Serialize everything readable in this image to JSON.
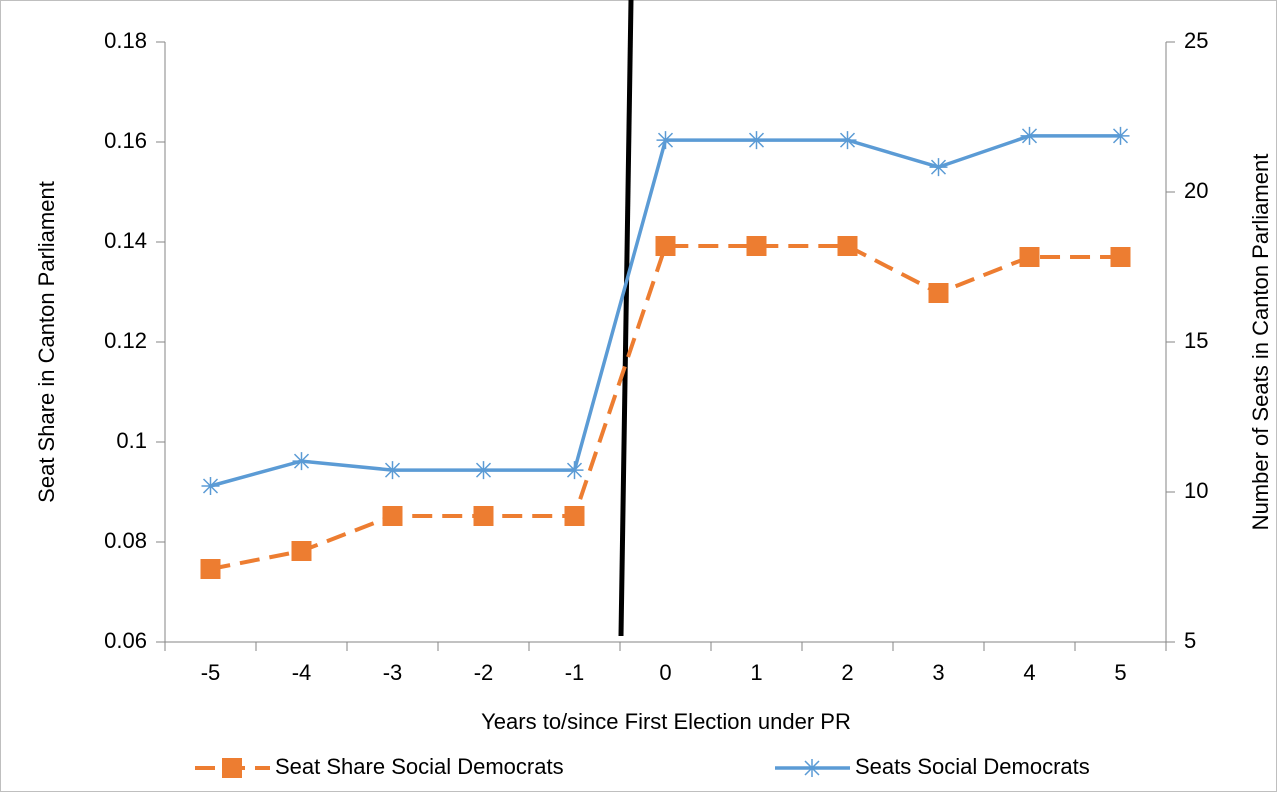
{
  "chart_data": {
    "type": "line",
    "x_label": "Years to/since First Election under PR",
    "y_label": "Seat Share in Canton Parliament",
    "y2_label": "Number of Seats in Canton Parliament",
    "categories": [
      "-5",
      "-4",
      "-3",
      "-2",
      "-1",
      "0",
      "1",
      "2",
      "3",
      "4",
      "5"
    ],
    "series": [
      {
        "name": "Seat Share Social Democrats",
        "color": "#ed7d31",
        "dash": true,
        "marker": "square",
        "values": [
          0.0746,
          0.0782,
          0.0852,
          0.0852,
          0.0852,
          0.1392,
          0.1392,
          0.1392,
          0.1298,
          0.137,
          0.137
        ]
      },
      {
        "name": "Seats Social Democrats",
        "color": "#5b9bd5",
        "axis": "y2",
        "marker": "star",
        "values": [
          10.2,
          11.03,
          10.73,
          10.73,
          10.73,
          21.73,
          21.73,
          21.73,
          20.83,
          21.87,
          21.87
        ]
      }
    ],
    "ylim": [
      0.06,
      0.18
    ],
    "yticks": [
      0.06,
      0.08,
      0.1,
      0.12,
      0.14,
      0.16,
      0.18
    ],
    "y2lim": [
      5,
      25
    ],
    "y2ticks": [
      5,
      10,
      15,
      20,
      25
    ]
  }
}
